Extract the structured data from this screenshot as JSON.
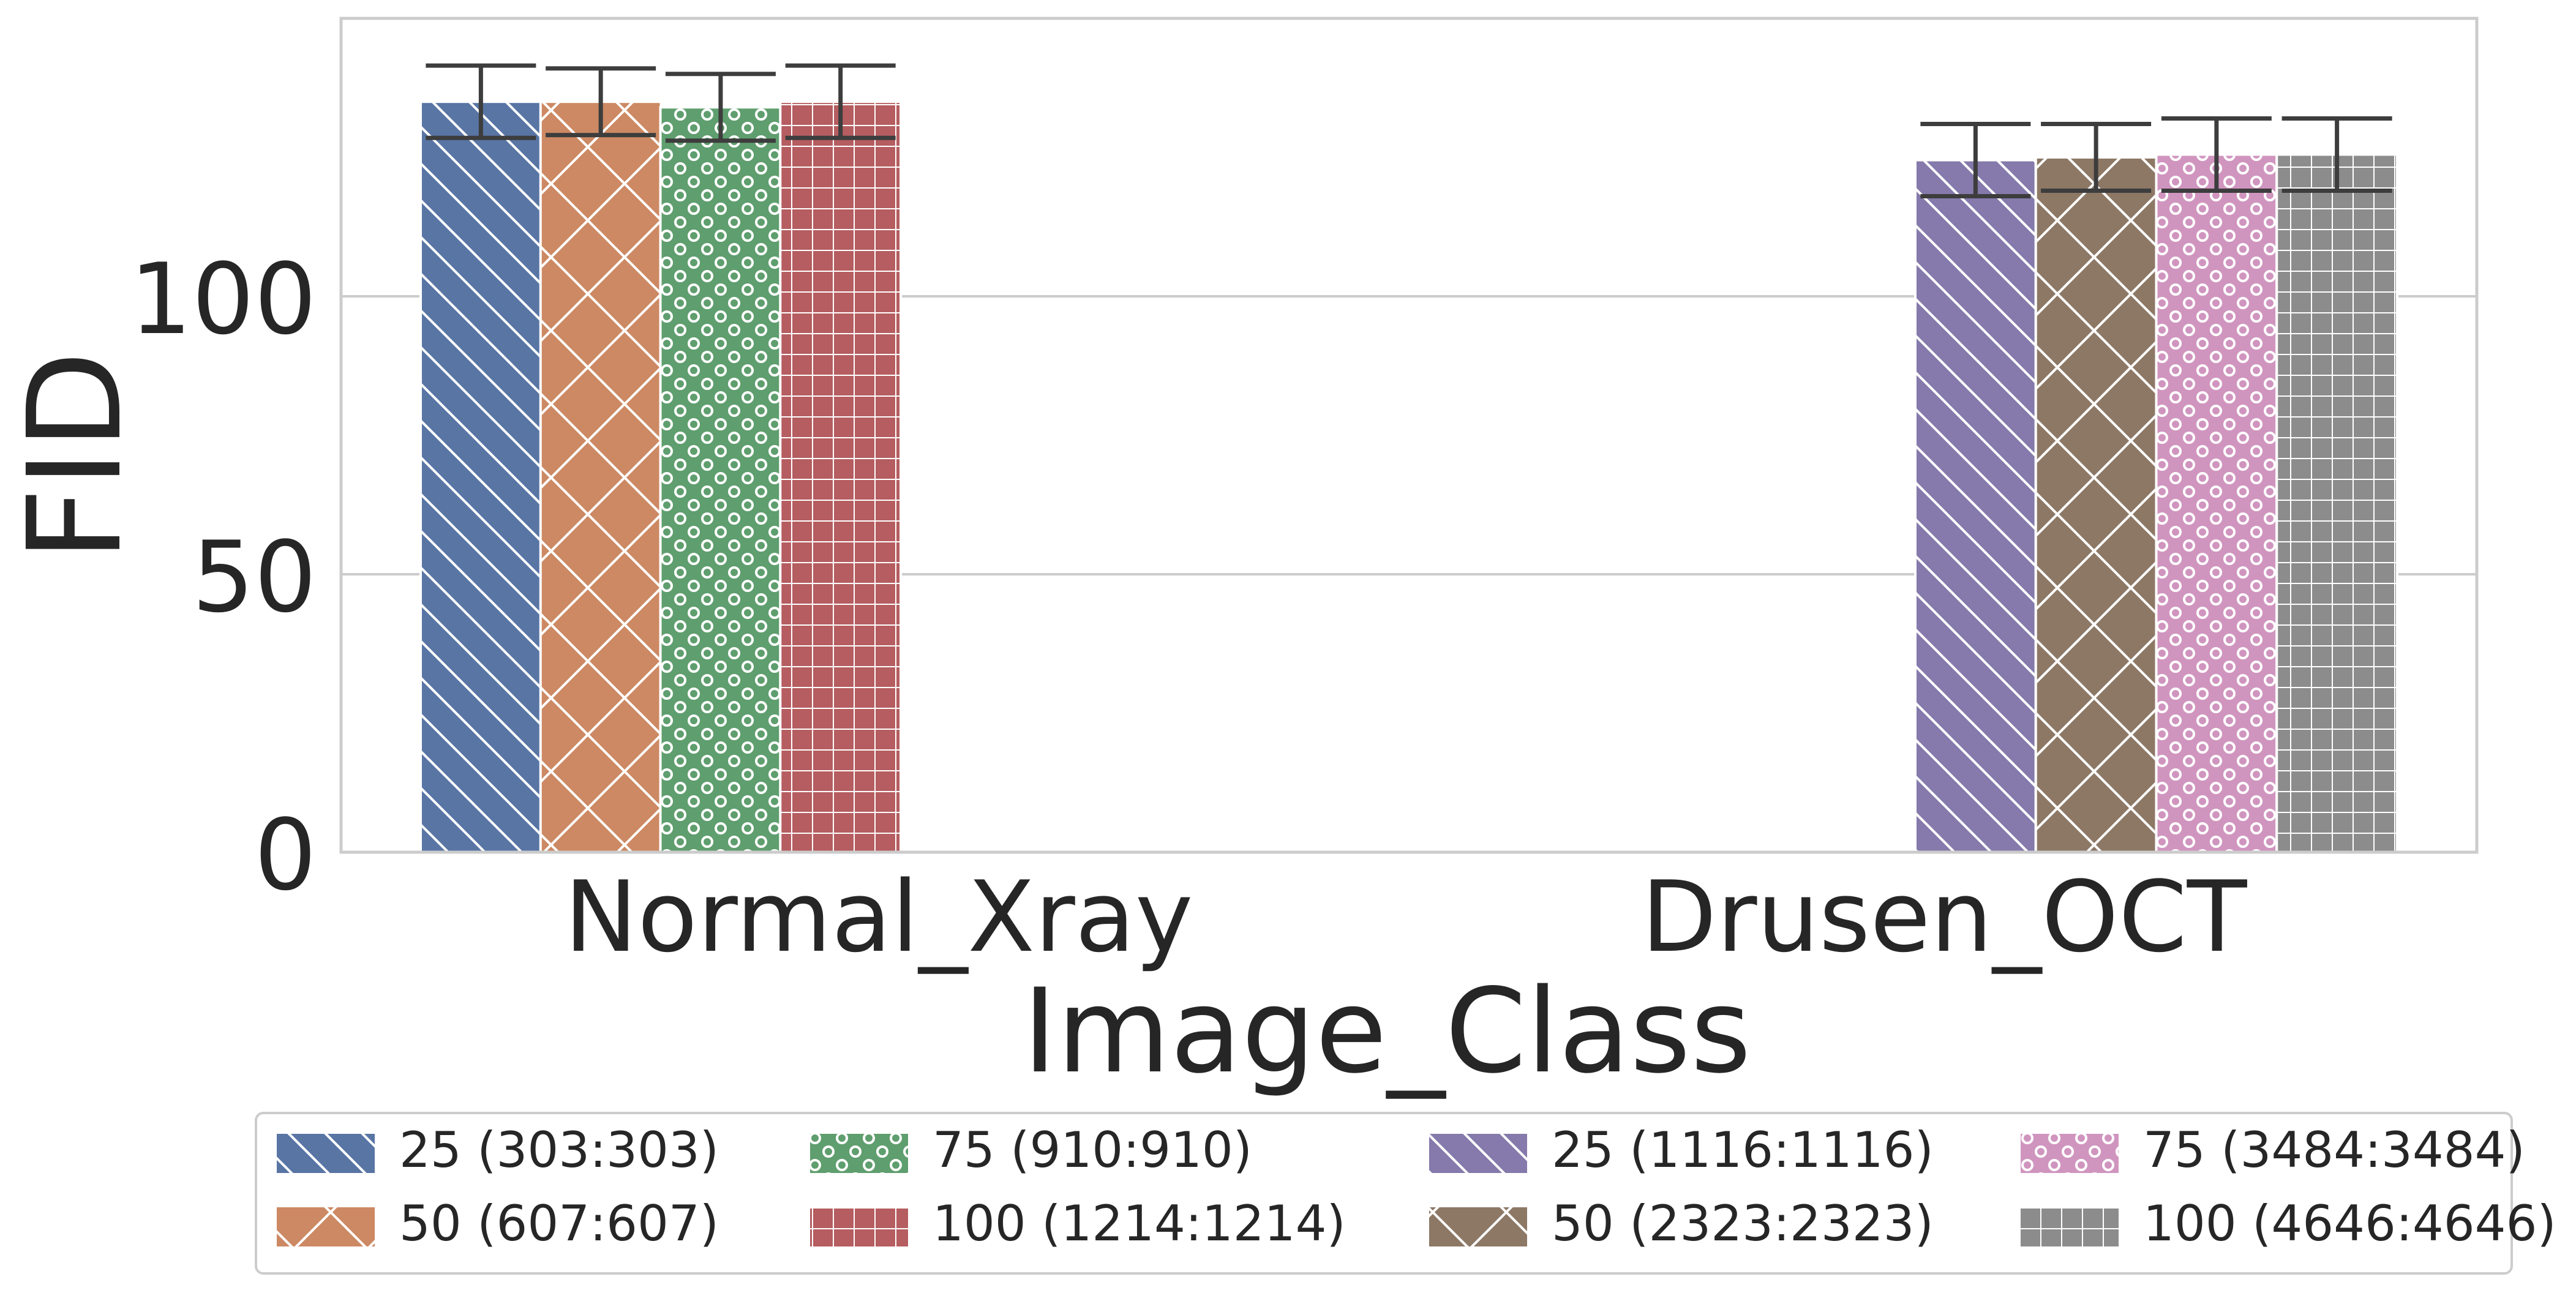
{
  "chart_data": {
    "type": "bar",
    "title": "",
    "xlabel": "Image_Class",
    "ylabel": "FID",
    "ylim": [
      0,
      150
    ],
    "yticks": [
      0,
      50,
      100
    ],
    "grid": "horizontal",
    "legend_placement": "bottom-below",
    "categories": [
      "Normal_Xray",
      "Drusen_OCT"
    ],
    "groups": [
      {
        "category": "Normal_Xray",
        "series": [
          {
            "name": "25 (303:303)",
            "value": 135,
            "err": 6.5,
            "color": "#5875A4",
            "pattern": "diag"
          },
          {
            "name": "50 (607:607)",
            "value": 135,
            "err": 6.0,
            "color": "#CC8963",
            "pattern": "cross"
          },
          {
            "name": "75 (910:910)",
            "value": 134,
            "err": 6.0,
            "color": "#5F9E6E",
            "pattern": "dots"
          },
          {
            "name": "100 (1214:1214)",
            "value": 135,
            "err": 6.5,
            "color": "#B55D60",
            "pattern": "grid"
          }
        ]
      },
      {
        "category": "Drusen_OCT",
        "series": [
          {
            "name": "25 (1116:1116)",
            "value": 124.5,
            "err": 6.5,
            "color": "#857AAB",
            "pattern": "diag"
          },
          {
            "name": "50 (2323:2323)",
            "value": 125,
            "err": 6.0,
            "color": "#8D7866",
            "pattern": "cross"
          },
          {
            "name": "75 (3484:3484)",
            "value": 125.5,
            "err": 6.5,
            "color": "#D095BF",
            "pattern": "dots"
          },
          {
            "name": "100 (4646:4646)",
            "value": 125.5,
            "err": 6.5,
            "color": "#8C8C8C",
            "pattern": "grid"
          }
        ]
      }
    ],
    "legend": {
      "columns": [
        [
          "25 (303:303)",
          "50 (607:607)"
        ],
        [
          "75 (910:910)",
          "100 (1214:1214)"
        ],
        [
          "25 (1116:1116)",
          "50 (2323:2323)"
        ],
        [
          "75 (3484:3484)",
          "100 (4646:4646)"
        ]
      ]
    }
  }
}
